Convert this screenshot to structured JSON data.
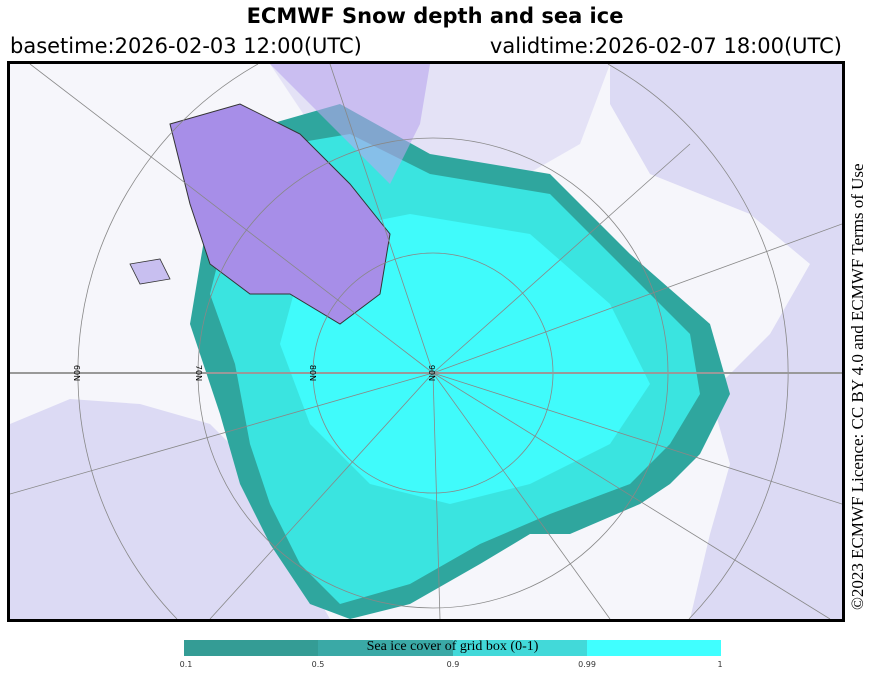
{
  "header": {
    "title": "ECMWF Snow depth and sea ice",
    "basetime": "basetime:2026-02-03 12:00(UTC)",
    "validtime": "validtime:2026-02-07 18:00(UTC)"
  },
  "map": {
    "projection": "polar stereographic, North Pole",
    "latitude_labels": [
      "60N",
      "70N",
      "80N",
      "90N"
    ],
    "colors": {
      "ocean": "#ffffff",
      "land_snow": "#d9d8f4",
      "greenland": "#a78ee8",
      "ice_low": "#2f9e96",
      "ice_mid": "#3bbcb8",
      "ice_high": "#36e6e6",
      "ice_full": "#40ffff"
    }
  },
  "licence": "©2023 ECMWF Licence: CC BY 4.0 and ECMWF Terms of Use",
  "legend": {
    "title": "Sea ice cover of grid box (0-1)",
    "ticks": [
      "0.1",
      "0.5",
      "0.9",
      "0.99",
      "1"
    ],
    "colors": [
      "#349c95",
      "#3aa9a6",
      "#42d9d9",
      "#40ffff"
    ]
  }
}
